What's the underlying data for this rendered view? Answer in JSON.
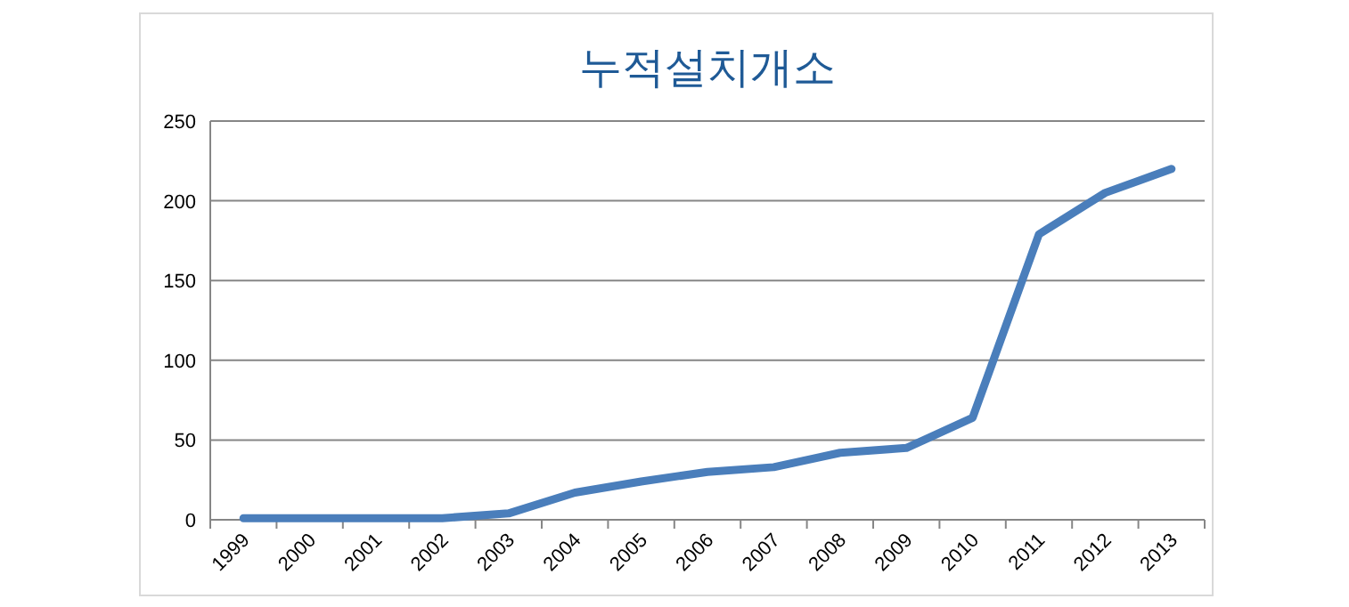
{
  "chart_data": {
    "type": "line",
    "title": "누적설치개소",
    "categories": [
      "1999",
      "2000",
      "2001",
      "2002",
      "2003",
      "2004",
      "2005",
      "2006",
      "2007",
      "2008",
      "2009",
      "2010",
      "2011",
      "2012",
      "2013"
    ],
    "series": [
      {
        "color": "#4a7ebb",
        "values": [
          1,
          1,
          1,
          1,
          4,
          17,
          24,
          30,
          33,
          42,
          45,
          64,
          179,
          205,
          220
        ]
      }
    ],
    "ylim": [
      0,
      250
    ],
    "yticks": [
      0,
      50,
      100,
      150,
      200,
      250
    ],
    "grid": "y",
    "marker": "none",
    "line_style": "solid"
  }
}
